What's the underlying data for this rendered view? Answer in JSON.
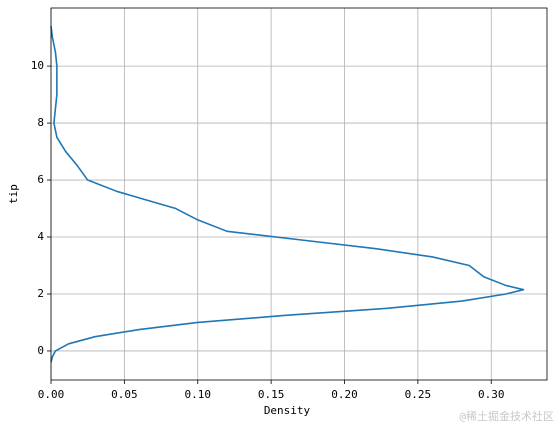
{
  "chart_data": {
    "type": "line",
    "xlabel": "Density",
    "ylabel": "tip",
    "x": [
      0.0,
      0.001,
      0.003,
      0.012,
      0.03,
      0.06,
      0.1,
      0.16,
      0.23,
      0.28,
      0.31,
      0.322,
      0.31,
      0.295,
      0.285,
      0.26,
      0.22,
      0.17,
      0.12,
      0.1,
      0.085,
      0.065,
      0.045,
      0.025,
      0.018,
      0.01,
      0.004,
      0.002,
      0.003,
      0.004,
      0.004,
      0.004,
      0.003,
      0.001,
      0.0
    ],
    "values": [
      -0.4,
      -0.2,
      0,
      0.25,
      0.5,
      0.75,
      1.0,
      1.25,
      1.5,
      1.75,
      2.0,
      2.15,
      2.3,
      2.6,
      3.0,
      3.3,
      3.6,
      3.9,
      4.2,
      4.6,
      5.0,
      5.3,
      5.6,
      6.0,
      6.5,
      7.0,
      7.5,
      8.0,
      8.5,
      9.0,
      9.5,
      10.0,
      10.5,
      11.0,
      11.4
    ],
    "color": "#1f77b4",
    "xlim": [
      0,
      0.338
    ],
    "ylim": [
      -1.02,
      12.04
    ],
    "xticks": [
      {
        "value": 0,
        "label": "0.00"
      },
      {
        "value": 0.05,
        "label": "0.05"
      },
      {
        "value": 0.1,
        "label": "0.10"
      },
      {
        "value": 0.15,
        "label": "0.15"
      },
      {
        "value": 0.2,
        "label": "0.20"
      },
      {
        "value": 0.25,
        "label": "0.25"
      },
      {
        "value": 0.3,
        "label": "0.30"
      }
    ],
    "yticks": [
      0,
      2,
      4,
      6,
      8,
      10
    ],
    "grid": true,
    "watermark": "@稀土掘金技术社区"
  }
}
